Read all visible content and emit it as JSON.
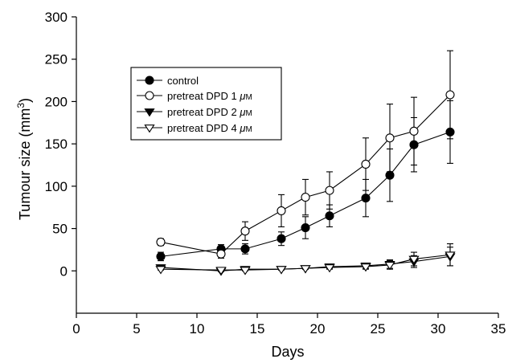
{
  "chart_data": {
    "type": "line",
    "xlabel": "Days",
    "ylabel_main": "Tumour size (mm",
    "ylabel_sup": "3",
    "ylabel_close": ")",
    "xlim": [
      0,
      35
    ],
    "ylim": [
      -50,
      300
    ],
    "xticks": [
      0,
      5,
      10,
      15,
      20,
      25,
      30,
      35
    ],
    "yticks": [
      0,
      50,
      100,
      150,
      200,
      250,
      300
    ],
    "grid": false,
    "legend_position": "upper-left",
    "x": [
      7,
      12,
      14,
      17,
      19,
      21,
      24,
      26,
      28,
      31
    ],
    "series": [
      {
        "name": "control",
        "marker": "filled-circle",
        "values": [
          17,
          26,
          26,
          38,
          51,
          65,
          86,
          113,
          149,
          164
        ],
        "errors": [
          5,
          5,
          6,
          8,
          13,
          13,
          22,
          31,
          32,
          37
        ]
      },
      {
        "name_main": "pretreat DPD 1 ",
        "name_unit_mu": "μ",
        "name_unit_rest": "M",
        "marker": "open-circle",
        "values": [
          34,
          20,
          47,
          71,
          87,
          95,
          126,
          157,
          165,
          208
        ],
        "errors": [
          4,
          5,
          11,
          19,
          21,
          22,
          31,
          40,
          40,
          52
        ]
      },
      {
        "name_main": "pretreat DPD 2 ",
        "name_unit_mu": "μ",
        "name_unit_rest": "M",
        "marker": "filled-triangle-down",
        "values": [
          4,
          0,
          2,
          2,
          3,
          5,
          6,
          8,
          11,
          17
        ],
        "errors": [
          1,
          1,
          1,
          1,
          1,
          2,
          3,
          5,
          7,
          11
        ]
      },
      {
        "name_main": "pretreat DPD 4 ",
        "name_unit_mu": "μ",
        "name_unit_rest": "M",
        "marker": "open-triangle-down",
        "values": [
          2,
          1,
          1,
          2,
          3,
          4,
          5,
          7,
          14,
          19
        ],
        "errors": [
          1,
          1,
          1,
          1,
          1,
          2,
          3,
          5,
          8,
          13
        ]
      }
    ]
  }
}
